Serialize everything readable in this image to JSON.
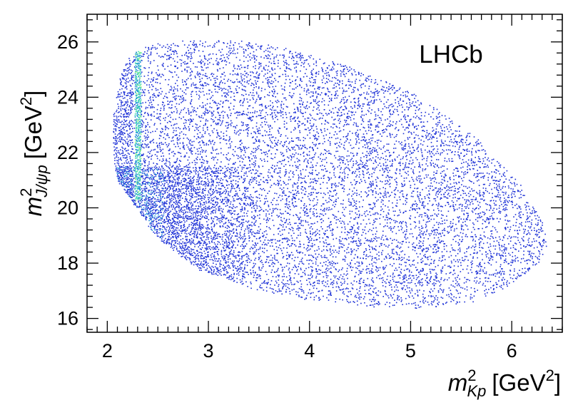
{
  "chart_data": {
    "type": "heatmap",
    "experiment": "LHCb",
    "xlabel": {
      "symbol": "m",
      "sub": "Kp",
      "sup": "2",
      "unit_pre": "[GeV",
      "unit_sup": "2",
      "unit_post": "]"
    },
    "ylabel": {
      "symbol": "m",
      "sub": "J/ψp",
      "sup": "2",
      "unit_pre": "[GeV",
      "unit_sup": "2",
      "unit_post": "]"
    },
    "xlim": [
      1.8,
      6.5
    ],
    "ylim": [
      15.5,
      27.0
    ],
    "x_ticks": [
      "2",
      "3",
      "4",
      "5",
      "6"
    ],
    "y_ticks": [
      "16",
      "18",
      "20",
      "22",
      "24",
      "26"
    ],
    "boundary": {
      "left": [
        [
          2.05,
          22.0
        ],
        [
          2.06,
          23.5
        ],
        [
          2.1,
          24.5
        ],
        [
          2.2,
          25.4
        ],
        [
          2.3,
          25.8
        ],
        [
          2.6,
          26.0
        ],
        [
          3.0,
          26.1
        ],
        [
          3.5,
          26.0
        ],
        [
          4.2,
          25.4
        ],
        [
          5.0,
          24.2
        ],
        [
          5.6,
          22.7
        ],
        [
          6.05,
          21.0
        ],
        [
          6.3,
          19.5
        ],
        [
          6.35,
          18.6
        ]
      ],
      "lower": [
        [
          2.05,
          22.0
        ],
        [
          2.1,
          21.0
        ],
        [
          2.25,
          20.2
        ],
        [
          2.5,
          18.9
        ],
        [
          2.9,
          17.8
        ],
        [
          3.4,
          17.1
        ],
        [
          4.0,
          16.7
        ],
        [
          4.6,
          16.45
        ],
        [
          5.1,
          16.4
        ],
        [
          5.6,
          16.6
        ],
        [
          6.0,
          17.2
        ],
        [
          6.25,
          18.0
        ],
        [
          6.35,
          18.6
        ]
      ]
    },
    "density": {
      "description_free": true,
      "bands": [
        {
          "x_center": 2.3,
          "x_width": 0.06,
          "y_range": [
            20.3,
            25.7
          ],
          "relative_intensity": 1.0
        }
      ],
      "enhanced_region": {
        "x_range": [
          2.05,
          3.6
        ],
        "y_range": [
          17.3,
          21.5
        ],
        "relative_intensity": 0.55
      },
      "background_intensity": 0.18
    },
    "colors": {
      "low": "#1b2fd6",
      "mid": "#1f8fd8",
      "high": "#35d8b0",
      "peak": "#7ff07a"
    },
    "grid": false,
    "legend": "none"
  }
}
